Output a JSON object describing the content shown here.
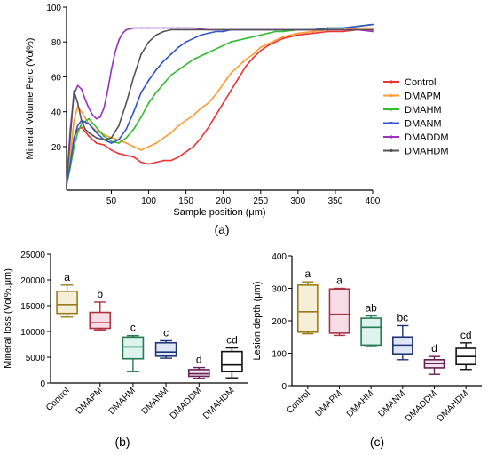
{
  "chart_data": [
    {
      "panel_label": "(a)",
      "type": "line",
      "xlabel": "Sample position (μm)",
      "ylabel": "Mineral Volume Perc (Vol%)",
      "xlim": [
        -10,
        400
      ],
      "ylim": [
        -5,
        100
      ],
      "x_ticks": [
        "50",
        "100",
        "150",
        "200",
        "250",
        "300",
        "350",
        "400"
      ],
      "y_ticks": [
        "20",
        "40",
        "60",
        "80",
        "100"
      ],
      "legend_position": "right",
      "series": [
        {
          "name": "Control",
          "color": "#ee3333",
          "x": [
            -10,
            -5,
            0,
            5,
            10,
            20,
            30,
            40,
            50,
            60,
            70,
            80,
            90,
            100,
            110,
            120,
            130,
            140,
            150,
            160,
            170,
            180,
            190,
            200,
            210,
            220,
            230,
            240,
            250,
            260,
            270,
            280,
            300,
            320,
            340,
            360,
            380,
            400
          ],
          "y": [
            -2,
            10,
            25,
            30,
            31,
            26,
            22,
            21,
            18,
            16,
            15,
            14,
            11,
            10,
            11,
            12,
            12,
            14,
            17,
            20,
            25,
            31,
            38,
            45,
            52,
            59,
            66,
            71,
            75,
            78,
            80,
            82,
            84,
            85,
            86,
            86,
            87,
            87
          ]
        },
        {
          "name": "DMAPM",
          "color": "#ff9933",
          "x": [
            -10,
            -5,
            0,
            5,
            10,
            20,
            30,
            40,
            50,
            60,
            70,
            80,
            90,
            100,
            110,
            120,
            130,
            140,
            150,
            160,
            170,
            180,
            190,
            200,
            210,
            220,
            230,
            240,
            250,
            260,
            270,
            280,
            300,
            320,
            340,
            360,
            380,
            400
          ],
          "y": [
            -2,
            15,
            35,
            43,
            40,
            33,
            29,
            27,
            25,
            24,
            22,
            20,
            18,
            20,
            22,
            25,
            28,
            32,
            35,
            38,
            42,
            45,
            50,
            56,
            62,
            66,
            70,
            73,
            77,
            79,
            81,
            83,
            85,
            86,
            87,
            87,
            88,
            88
          ]
        },
        {
          "name": "DMAHM",
          "color": "#33bb33",
          "x": [
            -10,
            -5,
            0,
            5,
            10,
            20,
            30,
            40,
            50,
            60,
            70,
            80,
            90,
            100,
            110,
            120,
            130,
            140,
            150,
            160,
            170,
            180,
            190,
            200,
            210,
            220,
            230,
            240,
            250,
            260,
            270,
            280,
            300,
            320,
            340,
            360,
            380,
            400
          ],
          "y": [
            -2,
            8,
            20,
            28,
            33,
            36,
            31,
            26,
            23,
            22,
            25,
            30,
            37,
            45,
            51,
            56,
            61,
            64,
            67,
            70,
            72,
            74,
            76,
            78,
            80,
            81,
            82,
            83,
            84,
            85,
            86,
            86,
            87,
            87,
            88,
            88,
            89,
            90
          ]
        },
        {
          "name": "DMANM",
          "color": "#3355cc",
          "x": [
            -10,
            -5,
            0,
            5,
            10,
            20,
            30,
            40,
            50,
            60,
            70,
            80,
            90,
            100,
            110,
            120,
            130,
            140,
            150,
            160,
            170,
            180,
            190,
            200,
            210,
            220,
            230,
            240,
            250,
            260,
            270,
            280,
            300,
            320,
            340,
            360,
            380,
            400
          ],
          "y": [
            -2,
            10,
            25,
            32,
            35,
            33,
            28,
            24,
            22,
            24,
            30,
            40,
            51,
            58,
            64,
            69,
            73,
            77,
            80,
            82,
            84,
            85,
            86,
            86,
            87,
            87,
            87,
            87,
            87,
            87,
            87,
            87,
            87,
            87,
            88,
            88,
            89,
            90
          ]
        },
        {
          "name": "DMADDM",
          "color": "#9933bb",
          "x": [
            -10,
            -5,
            0,
            5,
            10,
            15,
            20,
            25,
            30,
            35,
            40,
            45,
            50,
            55,
            60,
            65,
            70,
            80,
            90,
            100,
            120,
            140,
            160,
            180,
            200,
            220,
            240,
            260,
            280,
            300,
            320,
            340,
            360,
            380,
            400
          ],
          "y": [
            -2,
            30,
            50,
            55,
            53,
            47,
            42,
            38,
            36,
            37,
            42,
            52,
            64,
            74,
            81,
            85,
            87,
            88,
            88,
            88,
            88,
            88,
            88,
            87,
            87,
            87,
            87,
            87,
            87,
            87,
            87,
            87,
            87,
            87,
            86
          ]
        },
        {
          "name": "DMAHDM",
          "color": "#555555",
          "x": [
            -10,
            -5,
            0,
            5,
            10,
            15,
            20,
            30,
            40,
            50,
            60,
            70,
            80,
            90,
            100,
            110,
            120,
            130,
            150,
            170,
            200,
            230,
            260,
            300,
            340,
            380,
            400
          ],
          "y": [
            -2,
            25,
            52,
            45,
            35,
            30,
            28,
            25,
            24,
            25,
            32,
            45,
            60,
            73,
            80,
            84,
            86,
            87,
            87,
            87,
            87,
            87,
            87,
            87,
            87,
            87,
            87
          ]
        }
      ]
    },
    {
      "panel_label": "(b)",
      "type": "box",
      "ylabel": "Mineral loss (Vol%.μm)",
      "ylim": [
        0,
        25000
      ],
      "y_ticks": [
        "0",
        "5000",
        "10000",
        "15000",
        "20000",
        "25000"
      ],
      "categories": [
        "Control",
        "DMAPM",
        "DMAHM",
        "DMANM",
        "DMADDM",
        "DMAHDM"
      ],
      "colors": [
        "#9a7b1c",
        "#aa3344",
        "#2a7a55",
        "#223377",
        "#662255",
        "#111111"
      ],
      "fills": [
        "#f6efd8",
        "#f9dde6",
        "#ddf4ee",
        "#dde7f5",
        "#f3e3ee",
        "#ffffff"
      ],
      "significance": [
        "a",
        "b",
        "c",
        "c",
        "d",
        "cd"
      ],
      "boxes": [
        {
          "min": 12800,
          "q1": 13500,
          "median": 15200,
          "q3": 17800,
          "max": 19000
        },
        {
          "min": 10300,
          "q1": 10600,
          "median": 11700,
          "q3": 13700,
          "max": 15700
        },
        {
          "min": 2200,
          "q1": 4700,
          "median": 7000,
          "q3": 8900,
          "max": 9200
        },
        {
          "min": 4800,
          "q1": 5200,
          "median": 6000,
          "q3": 7800,
          "max": 8200
        },
        {
          "min": 900,
          "q1": 1300,
          "median": 1800,
          "q3": 2600,
          "max": 3000
        },
        {
          "min": 1000,
          "q1": 2200,
          "median": 3500,
          "q3": 6100,
          "max": 6800
        }
      ]
    },
    {
      "panel_label": "(c)",
      "type": "box",
      "ylabel": "Lesion depth (μm)",
      "ylim": [
        0,
        400
      ],
      "y_ticks": [
        "0",
        "100",
        "200",
        "300",
        "400"
      ],
      "categories": [
        "Control",
        "DMAPM",
        "DMAHM",
        "DMANM",
        "DMADDM",
        "DMAHDM"
      ],
      "colors": [
        "#9a7b1c",
        "#aa3344",
        "#2a7a55",
        "#223377",
        "#662255",
        "#111111"
      ],
      "fills": [
        "#f6efd8",
        "#f9dde6",
        "#ddf4ee",
        "#dde7f5",
        "#f3e3ee",
        "#ffffff"
      ],
      "significance": [
        "a",
        "a",
        "ab",
        "bc",
        "d",
        "cd"
      ],
      "boxes": [
        {
          "min": 160,
          "q1": 165,
          "median": 228,
          "q3": 310,
          "max": 320
        },
        {
          "min": 155,
          "q1": 162,
          "median": 220,
          "q3": 298,
          "max": 300
        },
        {
          "min": 120,
          "q1": 125,
          "median": 180,
          "q3": 208,
          "max": 215
        },
        {
          "min": 80,
          "q1": 98,
          "median": 125,
          "q3": 150,
          "max": 185
        },
        {
          "min": 35,
          "q1": 55,
          "median": 68,
          "q3": 80,
          "max": 90
        },
        {
          "min": 50,
          "q1": 65,
          "median": 90,
          "q3": 115,
          "max": 132
        }
      ]
    }
  ]
}
